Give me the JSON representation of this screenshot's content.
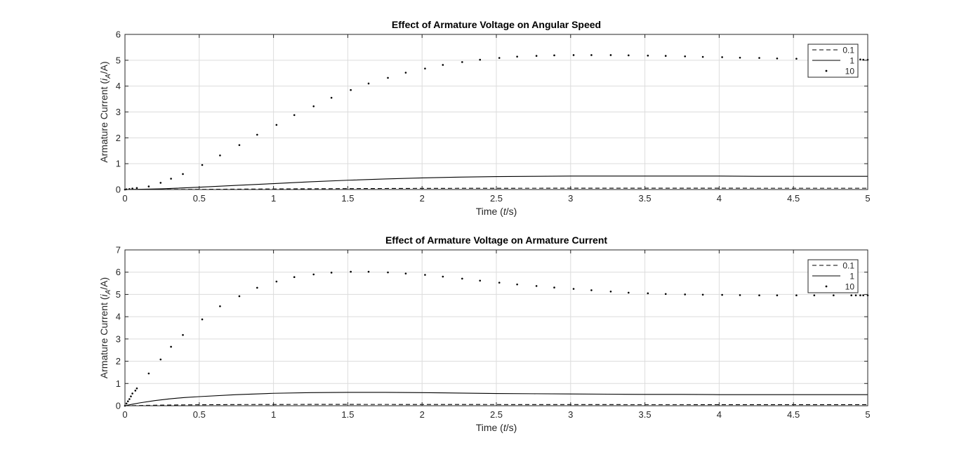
{
  "figure": {
    "background": "#ffffff",
    "grid_color": "#dcdcdc",
    "ink": "#262626",
    "line_color": "#000000"
  },
  "chart_data": [
    {
      "type": "line",
      "title": "Effect of Armature Voltage on Angular Speed",
      "xlabel_pre": "Time (",
      "xlabel_var": "t",
      "xlabel_post": "/s)",
      "ylabel_pre": "Armature Current (",
      "ylabel_var": "i",
      "ylabel_sub": "A",
      "ylabel_post": "/A)",
      "xlim": [
        0,
        5
      ],
      "ylim": [
        0,
        6
      ],
      "xticks": [
        "0",
        "0.5",
        "1",
        "1.5",
        "2",
        "2.5",
        "3",
        "3.5",
        "4",
        "4.5",
        "5"
      ],
      "yticks": [
        "0",
        "1",
        "2",
        "3",
        "4",
        "5",
        "6"
      ],
      "grid": true,
      "legend_position": "top-right",
      "series": [
        {
          "name": "0.1",
          "style": "dashed",
          "x": [
            0,
            0.25,
            0.5,
            0.75,
            1,
            1.25,
            1.5,
            1.75,
            2,
            2.25,
            2.5,
            2.75,
            3,
            3.25,
            3.5,
            3.75,
            4,
            4.25,
            4.5,
            4.75,
            5
          ],
          "y": [
            0,
            0.003,
            0.009,
            0.016,
            0.023,
            0.03,
            0.036,
            0.041,
            0.045,
            0.048,
            0.05,
            0.051,
            0.052,
            0.052,
            0.052,
            0.052,
            0.052,
            0.051,
            0.051,
            0.051,
            0.051
          ]
        },
        {
          "name": "1",
          "style": "solid",
          "x": [
            0,
            0.25,
            0.5,
            0.75,
            1,
            1.25,
            1.5,
            1.75,
            2,
            2.25,
            2.5,
            2.75,
            3,
            3.25,
            3.5,
            3.75,
            4,
            4.25,
            4.5,
            4.75,
            5
          ],
          "y": [
            0,
            0.03,
            0.09,
            0.16,
            0.23,
            0.3,
            0.36,
            0.41,
            0.45,
            0.48,
            0.5,
            0.51,
            0.52,
            0.52,
            0.52,
            0.52,
            0.52,
            0.51,
            0.51,
            0.51,
            0.51
          ]
        },
        {
          "name": "10",
          "style": "dots",
          "x": [
            0,
            0.01,
            0.03,
            0.05,
            0.08,
            0.16,
            0.24,
            0.31,
            0.39,
            0.52,
            0.64,
            0.77,
            0.89,
            1.02,
            1.14,
            1.27,
            1.39,
            1.52,
            1.64,
            1.77,
            1.89,
            2.02,
            2.14,
            2.27,
            2.39,
            2.52,
            2.64,
            2.77,
            2.89,
            3.02,
            3.14,
            3.27,
            3.39,
            3.52,
            3.64,
            3.77,
            3.89,
            4.02,
            4.14,
            4.27,
            4.39,
            4.52,
            4.64,
            4.77,
            4.89,
            4.92,
            4.95,
            4.97,
            5.0
          ],
          "y": [
            0,
            0.01,
            0.02,
            0.04,
            0.06,
            0.12,
            0.26,
            0.42,
            0.6,
            0.95,
            1.32,
            1.72,
            2.12,
            2.5,
            2.88,
            3.22,
            3.55,
            3.85,
            4.1,
            4.32,
            4.52,
            4.68,
            4.82,
            4.93,
            5.02,
            5.09,
            5.14,
            5.17,
            5.19,
            5.2,
            5.2,
            5.2,
            5.19,
            5.18,
            5.17,
            5.15,
            5.13,
            5.12,
            5.1,
            5.09,
            5.07,
            5.06,
            5.05,
            5.04,
            5.03,
            5.03,
            5.03,
            5.02,
            5.02
          ]
        }
      ]
    },
    {
      "type": "line",
      "title": "Effect of Armature Voltage on Armature Current",
      "xlabel_pre": "Time (",
      "xlabel_var": "t",
      "xlabel_post": "/s)",
      "ylabel_pre": "Armature Current (",
      "ylabel_var": "i",
      "ylabel_sub": "A",
      "ylabel_post": "/A)",
      "xlim": [
        0,
        5
      ],
      "ylim": [
        0,
        7
      ],
      "xticks": [
        "0",
        "0.5",
        "1",
        "1.5",
        "2",
        "2.5",
        "3",
        "3.5",
        "4",
        "4.5",
        "5"
      ],
      "yticks": [
        "0",
        "1",
        "2",
        "3",
        "4",
        "5",
        "6",
        "7"
      ],
      "grid": true,
      "legend_position": "top-right",
      "series": [
        {
          "name": "0.1",
          "style": "dashed",
          "x": [
            0,
            0.25,
            0.5,
            0.75,
            1,
            1.25,
            1.5,
            1.75,
            2,
            2.25,
            2.5,
            2.75,
            3,
            3.25,
            3.5,
            3.75,
            4,
            4.25,
            4.5,
            4.75,
            5
          ],
          "y": [
            0,
            0.029,
            0.045,
            0.054,
            0.058,
            0.06,
            0.06,
            0.059,
            0.058,
            0.057,
            0.055,
            0.054,
            0.053,
            0.052,
            0.051,
            0.051,
            0.05,
            0.05,
            0.05,
            0.05,
            0.05
          ]
        },
        {
          "name": "1",
          "style": "solid",
          "x": [
            0,
            0.05,
            0.1,
            0.2,
            0.3,
            0.4,
            0.5,
            0.75,
            1,
            1.25,
            1.5,
            1.75,
            2,
            2.25,
            2.5,
            2.75,
            3,
            3.25,
            3.5,
            3.75,
            4,
            4.25,
            4.5,
            4.75,
            5
          ],
          "y": [
            0,
            0.07,
            0.13,
            0.23,
            0.31,
            0.37,
            0.41,
            0.5,
            0.56,
            0.59,
            0.6,
            0.6,
            0.59,
            0.57,
            0.55,
            0.54,
            0.53,
            0.52,
            0.51,
            0.51,
            0.5,
            0.5,
            0.5,
            0.5,
            0.5
          ]
        },
        {
          "name": "10",
          "style": "dots",
          "x": [
            0,
            0.01,
            0.02,
            0.03,
            0.04,
            0.05,
            0.07,
            0.08,
            0.16,
            0.24,
            0.31,
            0.39,
            0.52,
            0.64,
            0.77,
            0.89,
            1.02,
            1.14,
            1.27,
            1.39,
            1.52,
            1.64,
            1.77,
            1.89,
            2.02,
            2.14,
            2.27,
            2.39,
            2.52,
            2.64,
            2.77,
            2.89,
            3.02,
            3.14,
            3.27,
            3.39,
            3.52,
            3.64,
            3.77,
            3.89,
            4.02,
            4.14,
            4.27,
            4.39,
            4.52,
            4.64,
            4.77,
            4.89,
            4.92,
            4.95,
            4.97,
            5.0
          ],
          "y": [
            0,
            0.1,
            0.2,
            0.3,
            0.42,
            0.55,
            0.68,
            0.78,
            1.45,
            2.08,
            2.65,
            3.18,
            3.88,
            4.47,
            4.92,
            5.3,
            5.58,
            5.78,
            5.9,
            5.98,
            6.02,
            6.02,
            5.99,
            5.94,
            5.88,
            5.8,
            5.71,
            5.62,
            5.53,
            5.45,
            5.38,
            5.31,
            5.25,
            5.19,
            5.13,
            5.08,
            5.05,
            5.02,
            5.0,
            4.99,
            4.98,
            4.97,
            4.96,
            4.96,
            4.96,
            4.96,
            4.96,
            4.96,
            4.96,
            4.96,
            4.96,
            4.96
          ]
        }
      ]
    }
  ]
}
